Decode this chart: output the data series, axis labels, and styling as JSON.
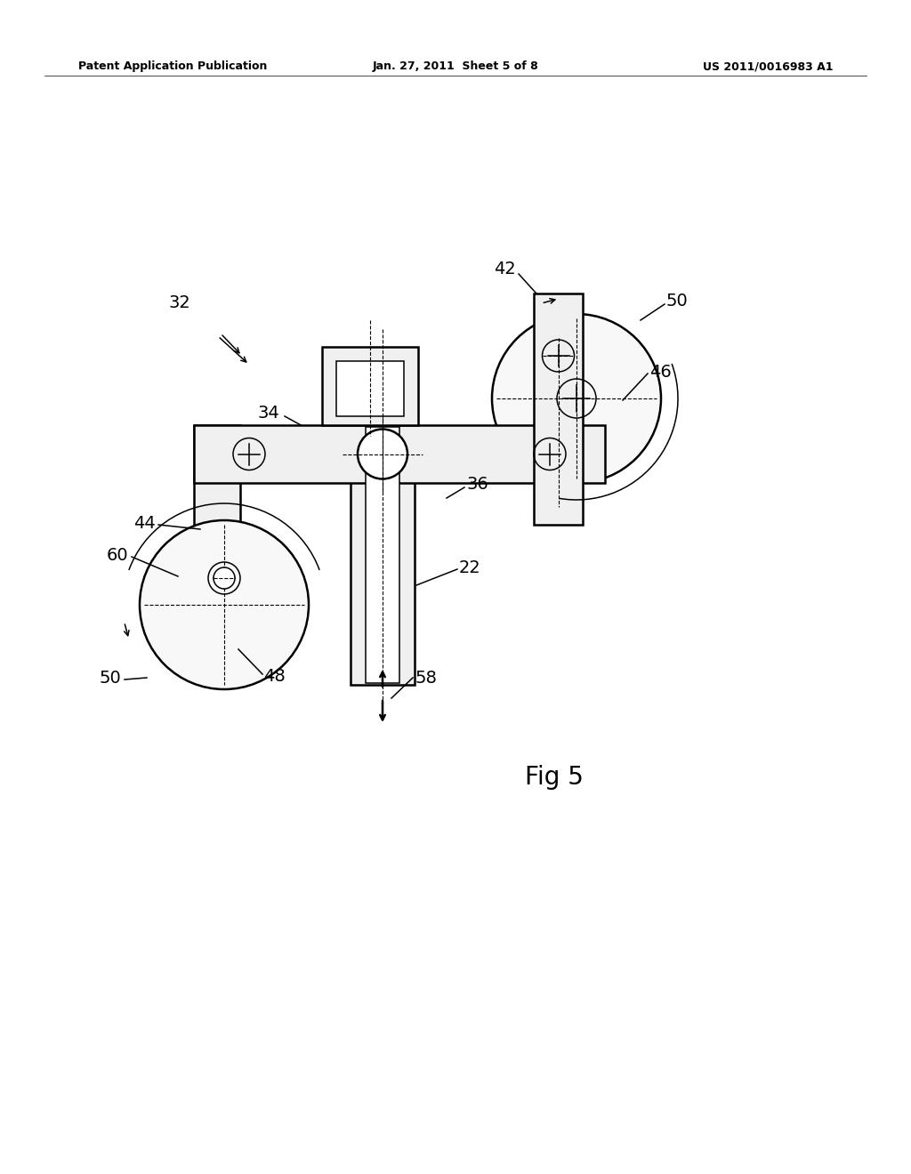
{
  "bg_color": "#ffffff",
  "header_left": "Patent Application Publication",
  "header_center": "Jan. 27, 2011  Sheet 5 of 8",
  "header_right": "US 2011/0016983 A1",
  "fig_label": "Fig 5",
  "line_color": "#000000",
  "lw_main": 1.8,
  "lw_thin": 1.1,
  "lw_dashed": 0.8
}
